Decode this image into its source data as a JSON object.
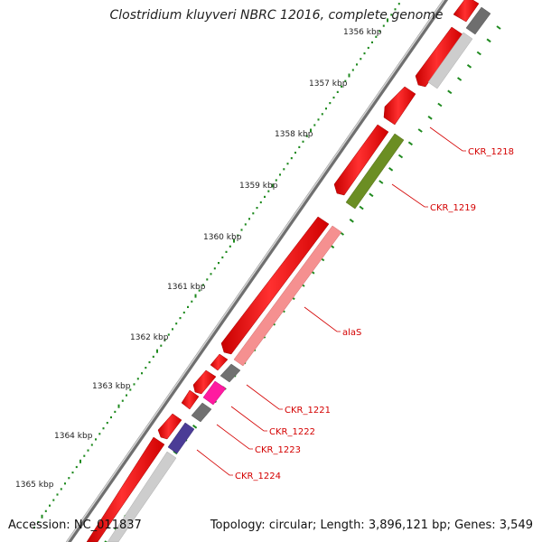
{
  "title": "Clostridium kluyveri NBRC 12016, complete genome",
  "footer": {
    "accession_label": "Accession:",
    "accession": "NC_011837",
    "topology_label": "Topology:",
    "topology": "circular",
    "length_label": "Length:",
    "length": "3,896,121 bp",
    "genes_label": "Genes:",
    "genes": "3,549"
  },
  "kbp_ticks": [
    {
      "label": "1356 kbp"
    },
    {
      "label": "1357 kbp"
    },
    {
      "label": "1358 kbp"
    },
    {
      "label": "1359 kbp"
    },
    {
      "label": "1360 kbp"
    },
    {
      "label": "1361 kbp"
    },
    {
      "label": "1362 kbp"
    },
    {
      "label": "1363 kbp"
    },
    {
      "label": "1364 kbp"
    },
    {
      "label": "1365 kbp"
    }
  ],
  "gene_labels": [
    {
      "label": "CKR_1218",
      "color": "#d40000"
    },
    {
      "label": "CKR_1219",
      "color": "#d40000"
    },
    {
      "label": "alaS",
      "color": "#d40000"
    },
    {
      "label": "CKR_1221",
      "color": "#d40000"
    },
    {
      "label": "CKR_1222",
      "color": "#d40000"
    },
    {
      "label": "CKR_1223",
      "color": "#d40000"
    },
    {
      "label": "CKR_1224",
      "color": "#d40000"
    }
  ],
  "colors": {
    "cds": "#ff0000",
    "rna_gray": "#c8c8c8",
    "dark_gray": "#707070",
    "olive": "#6b8e23",
    "salmon": "#f59090",
    "magenta": "#ff1aa0",
    "indigo": "#4b3c96",
    "tick_green": "#1f8a1f"
  }
}
